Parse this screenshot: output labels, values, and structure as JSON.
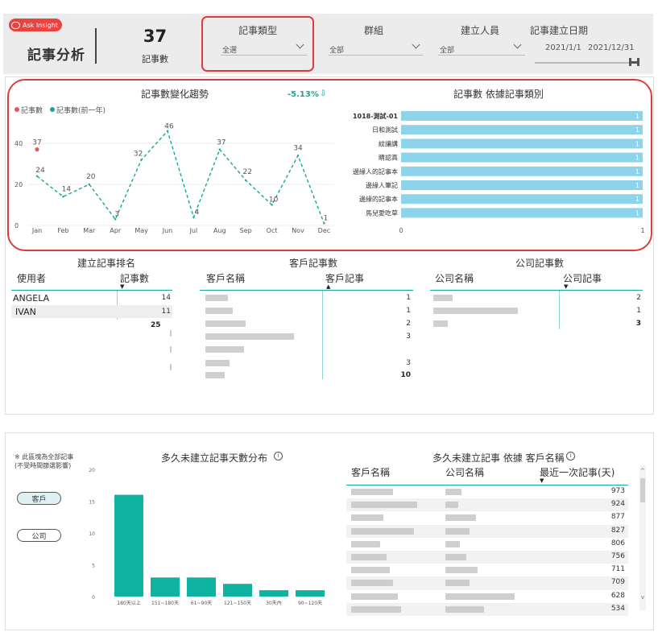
{
  "header": {
    "ask_insight": "Ask Insight",
    "title": "記事分析",
    "kpi_value": "37",
    "kpi_label": "記事數",
    "filters": [
      {
        "label": "記事類型",
        "value": "全選"
      },
      {
        "label": "群組",
        "value": "全部"
      },
      {
        "label": "建立人員",
        "value": "全部"
      }
    ],
    "date": {
      "label": "記事建立日期",
      "start": "2021/1/1",
      "end": "2021/12/31"
    }
  },
  "trend": {
    "title": "記事數變化趨勢",
    "change": "-5.13%",
    "legend_current": "記事數",
    "legend_prev": "記事數(前一年)",
    "y_ticks": [
      "40",
      "20",
      "0"
    ],
    "point_labels": [
      "37",
      "24",
      "14",
      "20",
      "3",
      "32",
      "46",
      "4",
      "37",
      "22",
      "10",
      "34",
      "1"
    ]
  },
  "type_bars": {
    "title": "記事數 依據記事類別",
    "x_ticks": [
      "0",
      "1"
    ]
  },
  "ranking": {
    "title": "建立記事排名",
    "col1": "使用者",
    "col2": "記事數",
    "rows": [
      {
        "name": "ANGELA",
        "value": "14"
      },
      {
        "name": "IVAN",
        "value": "11"
      }
    ],
    "total": "25"
  },
  "customer": {
    "title": "客戶記事數",
    "col1": "客戶名稱",
    "col2": "客戶記事",
    "values": [
      "1",
      "1",
      "2",
      "3",
      "3"
    ],
    "total": "10"
  },
  "company": {
    "title": "公司記事數",
    "col1": "公司名稱",
    "col2": "公司記事",
    "values": [
      "2",
      "1"
    ],
    "total": "3"
  },
  "bottom": {
    "note_line1": "※ 此區塊為全部記事",
    "note_line2": "(不受時間篩選影響)",
    "btn_customer": "客戶",
    "btn_company": "公司",
    "hist_title": "多久未建立記事天數分布",
    "hist_y_ticks": [
      "20",
      "15",
      "10",
      "5",
      "0"
    ],
    "table_title": "多久未建立記事 依據 客戶名稱",
    "col1": "客戶名稱",
    "col2": "公司名稱",
    "col3": "最近一次記事(天)",
    "days": [
      "973",
      "924",
      "877",
      "827",
      "806",
      "756",
      "711",
      "709",
      "628",
      "534"
    ]
  },
  "chart_data": [
    {
      "type": "line",
      "title": "記事數變化趨勢",
      "categories": [
        "Jan",
        "Feb",
        "Mar",
        "Apr",
        "May",
        "Jun",
        "Jul",
        "Aug",
        "Sep",
        "Oct",
        "Nov",
        "Dec"
      ],
      "series": [
        {
          "name": "記事數",
          "values": [
            37,
            null,
            null,
            null,
            null,
            null,
            null,
            null,
            null,
            null,
            null,
            null
          ],
          "color": "#e05a5a"
        },
        {
          "name": "記事數(前一年)",
          "values": [
            24,
            14,
            20,
            3,
            32,
            46,
            4,
            37,
            22,
            10,
            34,
            1
          ],
          "color": "#17a69b"
        }
      ],
      "ylim": [
        0,
        50
      ],
      "grid": true,
      "legend": "top-left"
    },
    {
      "type": "bar",
      "orientation": "horizontal",
      "title": "記事數 依據記事類別",
      "categories": [
        "1018-測試-01",
        "日和測試",
        "紋讓講",
        "睛認真",
        "邊緣人的記事本",
        "邊緣人筆記",
        "邊緣的記事本",
        "馬兒愛吃草"
      ],
      "values": [
        1,
        1,
        1,
        1,
        1,
        1,
        1,
        1
      ],
      "xlim": [
        0,
        1
      ],
      "color": "#8dd3ea"
    },
    {
      "type": "bar",
      "title": "多久未建立記事天數分布",
      "categories": [
        "180天以上",
        "151~180天",
        "61~90天",
        "121~150天",
        "30天內",
        "90~120天"
      ],
      "values": [
        16,
        3,
        3,
        2,
        1,
        1
      ],
      "ylim": [
        0,
        20
      ],
      "color": "#0fb3a1"
    }
  ]
}
